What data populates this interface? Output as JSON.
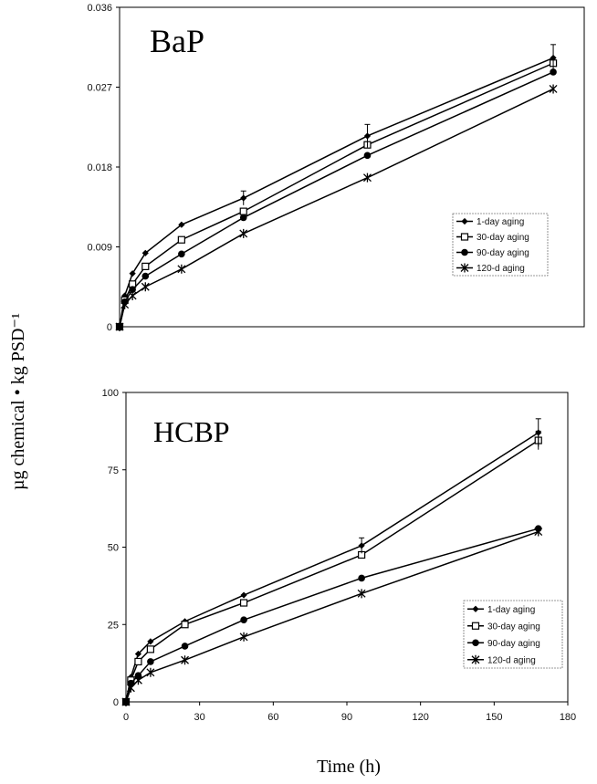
{
  "figure": {
    "ylabel": "µg chemical • kg PSD⁻¹",
    "xlabel": "Time (h)"
  },
  "chart_data": [
    {
      "type": "line",
      "title": "BaP",
      "xlabel": "Time (h)",
      "ylabel": "µg chemical • kg PSD⁻¹",
      "xlim": [
        0,
        180
      ],
      "ylim": [
        0,
        0.036
      ],
      "yticks": [
        "0",
        "0.009",
        "0.018",
        "0.027",
        "0.036"
      ],
      "grid": false,
      "legend_position": "right-bottom",
      "series": [
        {
          "name": "1-day aging",
          "marker": "diamond",
          "x": [
            0,
            2,
            5,
            10,
            24,
            48,
            96,
            168
          ],
          "y": [
            0,
            0.0035,
            0.006,
            0.0083,
            0.0115,
            0.0145,
            0.0215,
            0.0303
          ]
        },
        {
          "name": "30-day aging",
          "marker": "open-square",
          "x": [
            0,
            2,
            5,
            10,
            24,
            48,
            96,
            168
          ],
          "y": [
            0,
            0.003,
            0.0048,
            0.0068,
            0.0098,
            0.013,
            0.0205,
            0.0297
          ]
        },
        {
          "name": "90-day aging",
          "marker": "circle",
          "x": [
            0,
            2,
            5,
            10,
            24,
            48,
            96,
            168
          ],
          "y": [
            0,
            0.0028,
            0.0042,
            0.0057,
            0.0082,
            0.0123,
            0.0193,
            0.0287
          ]
        },
        {
          "name": "120-d aging",
          "marker": "star",
          "x": [
            0,
            2,
            5,
            10,
            24,
            48,
            96,
            168
          ],
          "y": [
            0,
            0.0025,
            0.0035,
            0.0045,
            0.0065,
            0.0105,
            0.0168,
            0.0268
          ]
        }
      ]
    },
    {
      "type": "line",
      "title": "HCBP",
      "xlabel": "Time (h)",
      "ylabel": "µg chemical • kg PSD⁻¹",
      "xlim": [
        0,
        180
      ],
      "ylim": [
        0,
        100
      ],
      "xticks": [
        "0",
        "30",
        "60",
        "90",
        "120",
        "150",
        "180"
      ],
      "yticks": [
        "0",
        "25",
        "50",
        "75",
        "100"
      ],
      "grid": false,
      "legend_position": "right-bottom",
      "series": [
        {
          "name": "1-day aging",
          "marker": "diamond",
          "x": [
            0,
            2,
            5,
            10,
            24,
            48,
            96,
            168
          ],
          "y": [
            0,
            8,
            15.5,
            19.5,
            26,
            34.5,
            50.5,
            87
          ]
        },
        {
          "name": "30-day aging",
          "marker": "open-square",
          "x": [
            0,
            2,
            5,
            10,
            24,
            48,
            96,
            168
          ],
          "y": [
            0,
            7,
            13,
            17,
            25,
            32,
            47.5,
            84.5
          ]
        },
        {
          "name": "90-day aging",
          "marker": "circle",
          "x": [
            0,
            2,
            5,
            10,
            24,
            48,
            96,
            168
          ],
          "y": [
            0,
            6,
            8.5,
            13,
            18,
            26.5,
            40,
            56
          ]
        },
        {
          "name": "120-d aging",
          "marker": "star",
          "x": [
            0,
            2,
            5,
            10,
            24,
            48,
            96,
            168
          ],
          "y": [
            0,
            4.5,
            7,
            9.5,
            13.5,
            21,
            35,
            55
          ]
        }
      ]
    }
  ]
}
